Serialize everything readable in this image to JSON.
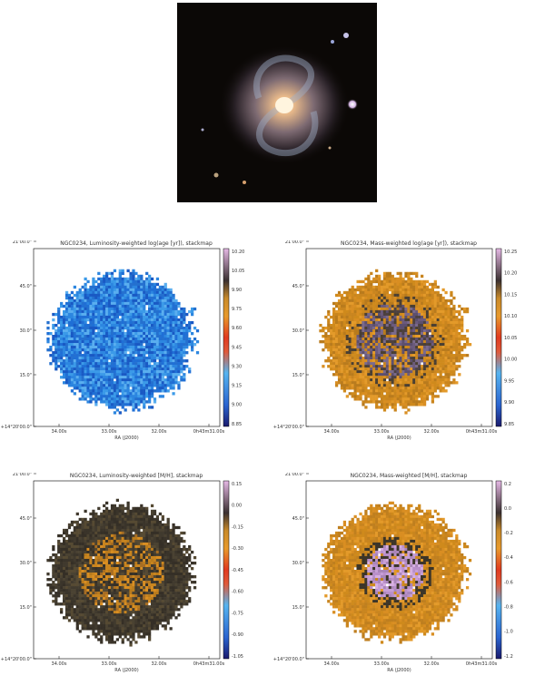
{
  "colors": {
    "background": "#ffffff",
    "frame": "#000000"
  },
  "galaxy_image": {
    "name": "galaxy-image"
  },
  "chart_data": [
    {
      "type": "heatmap",
      "title": "NGC0234, Luminosity-weighted log(age [yr]), stackmap",
      "xlabel": "RA (J2000)",
      "ylabel": "",
      "xticks": [
        "34.00s",
        "33.00s",
        "32.00s",
        "0h43m31.00s"
      ],
      "yticks": [
        "+14°20'00.0\"",
        "15.0\"",
        "30.0\"",
        "45.0\"",
        "21'00.0\""
      ],
      "colorbar_ticks": [
        "10.20",
        "10.05",
        "9.90",
        "9.75",
        "9.60",
        "9.45",
        "9.30",
        "9.15",
        "9.00",
        "8.85"
      ],
      "colormap": "blue-orange-purple",
      "dominant_range": "low (blue)"
    },
    {
      "type": "heatmap",
      "title": "NGC0234, Mass-weighted log(age [yr]), stackmap",
      "xlabel": "RA (J2000)",
      "ylabel": "",
      "xticks": [
        "34.00s",
        "33.00s",
        "32.00s",
        "0h43m31.00s"
      ],
      "yticks": [
        "+14°20'00.0\"",
        "15.0\"",
        "30.0\"",
        "45.0\"",
        "21'00.0\""
      ],
      "colorbar_ticks": [
        "10.25",
        "10.20",
        "10.15",
        "10.10",
        "10.05",
        "10.00",
        "9.95",
        "9.90",
        "9.85"
      ],
      "colormap": "blue-orange-purple",
      "dominant_range": "mid-high (orange, purple core)"
    },
    {
      "type": "heatmap",
      "title": "NGC0234, Luminosity-weighted [M/H], stackmap",
      "xlabel": "RA (J2000)",
      "ylabel": "",
      "xticks": [
        "34.00s",
        "33.00s",
        "32.00s",
        "0h43m31.00s"
      ],
      "yticks": [
        "+14°20'00.0\"",
        "15.0\"",
        "30.0\"",
        "45.0\"",
        "21'00.0\""
      ],
      "colorbar_ticks": [
        "0.15",
        "0.00",
        "-0.15",
        "-0.30",
        "-0.45",
        "-0.60",
        "-0.75",
        "-0.90",
        "-1.05"
      ],
      "colormap": "blue-orange-purple",
      "dominant_range": "mid (dark olive, orange core)"
    },
    {
      "type": "heatmap",
      "title": "NGC0234, Mass-weighted [M/H], stackmap",
      "xlabel": "RA (J2000)",
      "ylabel": "",
      "xticks": [
        "34.00s",
        "33.00s",
        "32.00s",
        "0h43m31.00s"
      ],
      "yticks": [
        "+14°20'00.0\"",
        "15.0\"",
        "30.0\"",
        "45.0\"",
        "21'00.0\""
      ],
      "colorbar_ticks": [
        "0.2",
        "0.0",
        "-0.2",
        "-0.4",
        "-0.6",
        "-0.8",
        "-1.0",
        "-1.2"
      ],
      "colormap": "blue-orange-purple",
      "dominant_range": "mid (orange, pink core)"
    }
  ]
}
